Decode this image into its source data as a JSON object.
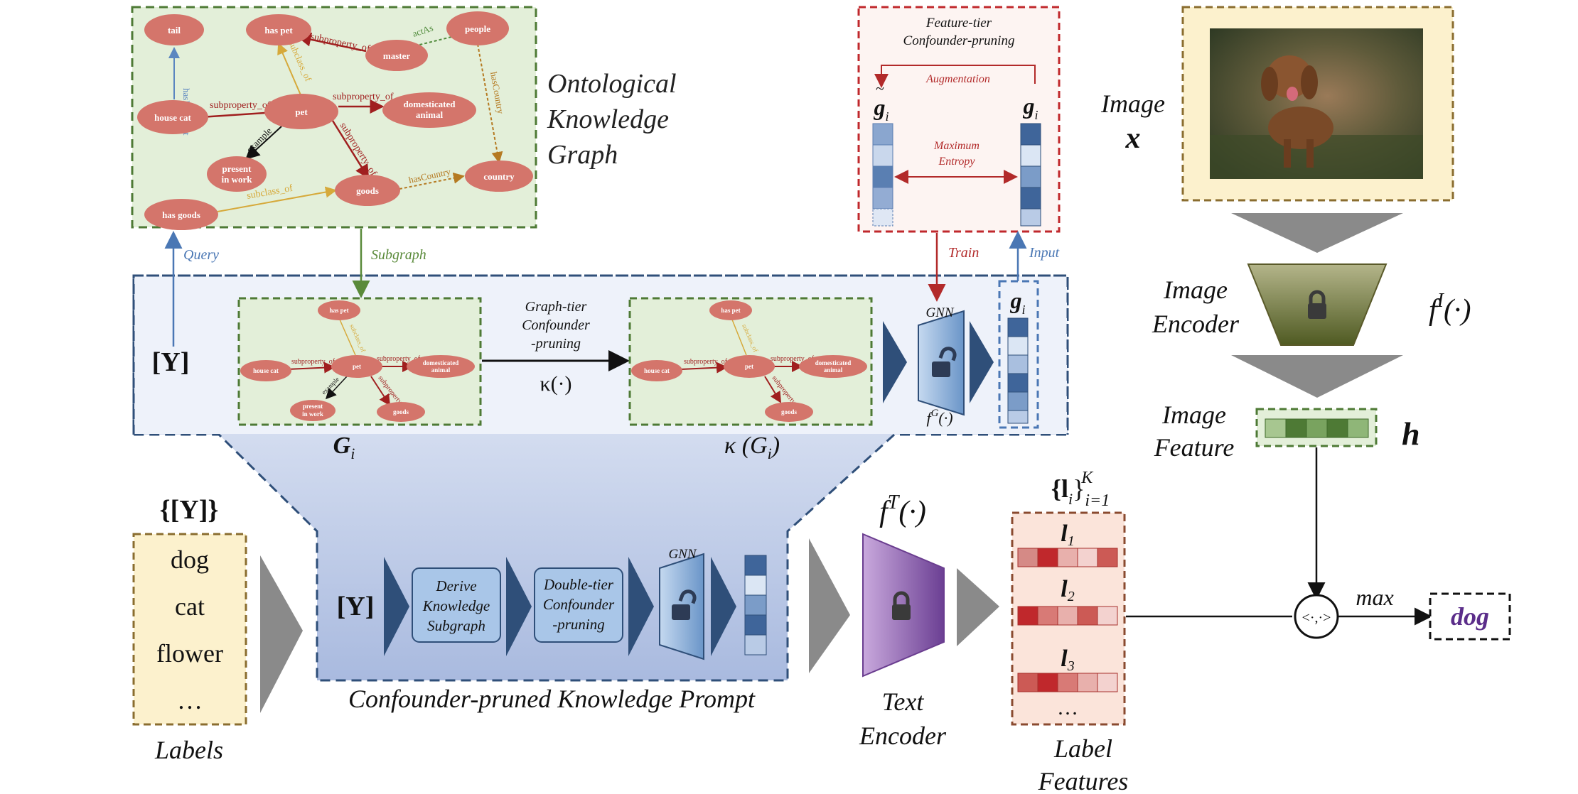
{
  "kg": {
    "title_lines": [
      "Ontological",
      "Knowledge",
      "Graph"
    ],
    "nodes": {
      "tail": "tail",
      "has_pet": "has pet",
      "master": "master",
      "people": "people",
      "house_cat": "house cat",
      "pet": "pet",
      "domesticated_animal": [
        "domesticated",
        "animal"
      ],
      "present_in_work": [
        "present",
        "in work"
      ],
      "goods": "goods",
      "country": "country",
      "has_goods": "has goods"
    },
    "edges": {
      "has_body_part": "hasBodyPart",
      "subclass_of": "subclass_of",
      "subproperty_of": "subproperty_of",
      "acts_as": "actAs",
      "has_country": "hasCountry",
      "example": "example"
    }
  },
  "arrows": {
    "query": "Query",
    "subgraph": "Subgraph",
    "train": "Train",
    "input": "Input"
  },
  "feature_tier": {
    "title_lines": [
      "Feature-tier",
      "Confounder-pruning"
    ],
    "augmentation": "Augmentation",
    "max_entropy_lines": [
      "Maximum",
      "Entropy"
    ]
  },
  "prompt_module": {
    "y_label": "[Y]",
    "graph_tier_lines": [
      "Graph-tier",
      "Confounder",
      "-pruning"
    ],
    "kappa_label": "κ(·)",
    "gnn_label": "GNN",
    "fg_label": "f",
    "fg_sup": "G",
    "fg_arg": "(·)",
    "gi_label": "G",
    "gi_sub": "i",
    "kgi_label": "κ (G",
    "kgi_sub": "i",
    "g_vec_label": "g",
    "g_vec_sub": "i",
    "derive_lines": [
      "Derive",
      "Knowledge",
      "Subgraph"
    ],
    "double_tier_lines": [
      "Double-tier",
      "Confounder",
      "-pruning"
    ],
    "title": "Confounder-pruned Knowledge Prompt"
  },
  "labels_box": {
    "header": "{[Y]}",
    "items": [
      "dog",
      "cat",
      "flower",
      "…"
    ],
    "caption": "Labels"
  },
  "text_encoder": {
    "func": "f",
    "sup": "T",
    "arg": "(·)",
    "caption_lines": [
      "Text",
      "Encoder"
    ]
  },
  "label_features": {
    "header": "{l",
    "header_sub": "i",
    "header_range": "i=1",
    "header_sup": "K",
    "items": [
      {
        "base": "l",
        "sub": "1"
      },
      {
        "base": "l",
        "sub": "2"
      },
      {
        "base": "l",
        "sub": "3"
      }
    ],
    "ellipsis": "…",
    "caption_lines": [
      "Label",
      "Features"
    ]
  },
  "image_branch": {
    "image_label": "Image",
    "image_var": "x",
    "encoder_lines": [
      "Image",
      "Encoder"
    ],
    "encoder_func": "f",
    "encoder_sup": "I",
    "encoder_arg": "(·)",
    "feature_lines": [
      "Image",
      "Feature"
    ],
    "feature_var": "h"
  },
  "output": {
    "op": "<·,·>",
    "max_label": "max",
    "result": "dog"
  },
  "colors": {
    "kg_bg": "#e3efd9",
    "kg_border": "#4e7a35",
    "node_fill": "#d4756b",
    "blue_dark": "#2f4f79",
    "red_border": "#c0282c",
    "label_bg": "#fcf1cd",
    "purple": "#6a3d8f",
    "grey_arrow": "#8a8a8a"
  }
}
